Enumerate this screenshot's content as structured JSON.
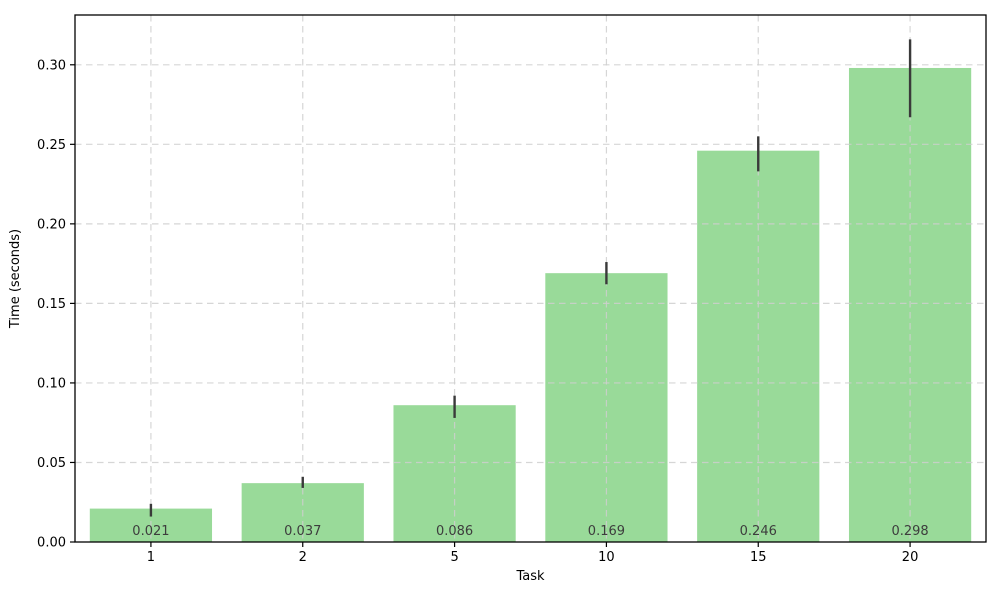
{
  "chart_data": {
    "type": "bar",
    "title": "",
    "xlabel": "Task",
    "ylabel": "Time (seconds)",
    "categories": [
      "1",
      "2",
      "5",
      "10",
      "15",
      "20"
    ],
    "values": [
      0.021,
      0.037,
      0.086,
      0.169,
      0.246,
      0.298
    ],
    "bar_value_labels": [
      "0.021",
      "0.037",
      "0.086",
      "0.169",
      "0.246",
      "0.298"
    ],
    "error_low": [
      0.016,
      0.034,
      0.078,
      0.162,
      0.233,
      0.267
    ],
    "error_high": [
      0.024,
      0.041,
      0.092,
      0.176,
      0.255,
      0.316
    ],
    "yticks": [
      0.0,
      0.05,
      0.1,
      0.15,
      0.2,
      0.25,
      0.3
    ],
    "ytick_labels": [
      "0.00",
      "0.05",
      "0.10",
      "0.15",
      "0.20",
      "0.25",
      "0.30"
    ],
    "ylim": [
      0,
      0.3313
    ],
    "grid": "dashed, horizontal and vertical, drawn above bars",
    "legend": "none",
    "colors": {
      "bar": "#99DA99",
      "error_bar": "#3A3A3A",
      "grid": "#CFCFCF",
      "axis": "#000000",
      "tick_text": "#000000",
      "bar_label_text": "#3D3D3D",
      "background": "#FFFFFF"
    }
  }
}
